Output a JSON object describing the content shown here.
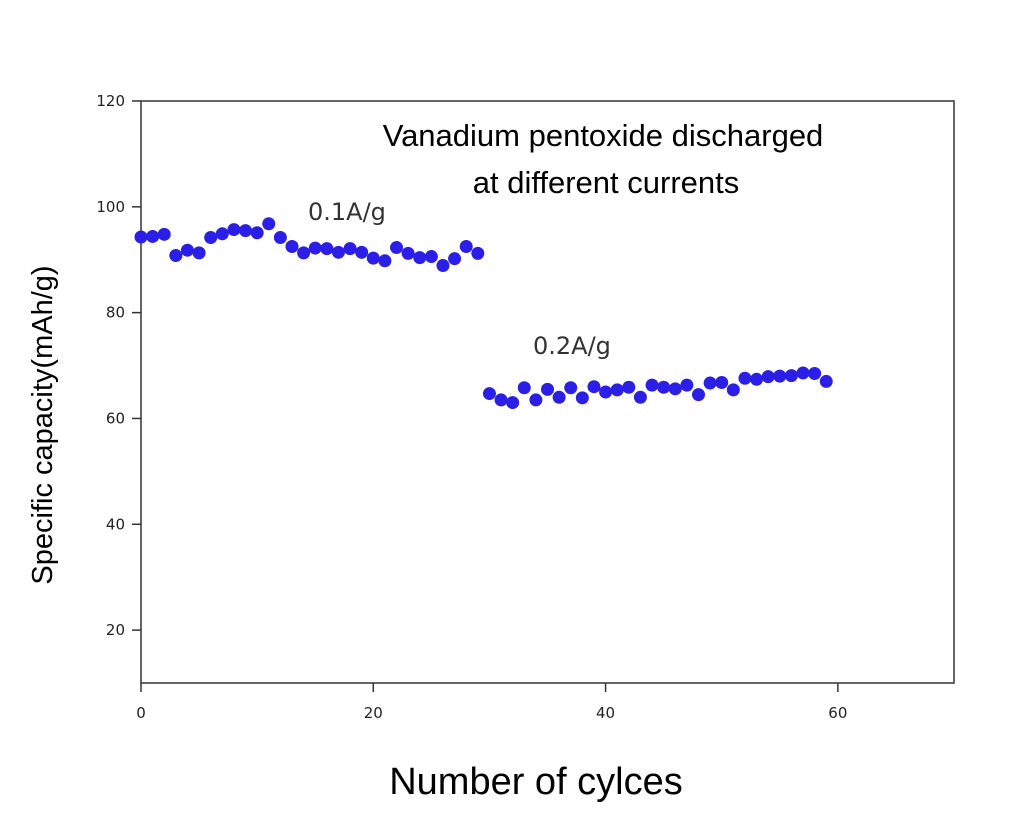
{
  "chart_data": {
    "type": "scatter",
    "title_lines": [
      "Vanadium pentoxide discharged",
      "at different currents"
    ],
    "xlabel": "Number of cylces",
    "ylabel": "Specific capacity(mAh/g)",
    "xlim": [
      0,
      70
    ],
    "ylim": [
      10,
      120
    ],
    "xticks": [
      0,
      20,
      40,
      60
    ],
    "yticks": [
      20,
      40,
      60,
      80,
      100,
      120
    ],
    "grid": false,
    "marker_color": "#2b1ee6",
    "series": [
      {
        "name": "0.1A/g",
        "x": [
          0,
          1,
          2,
          3,
          4,
          5,
          6,
          7,
          8,
          9,
          10,
          11,
          12,
          13,
          14,
          15,
          16,
          17,
          18,
          19,
          20,
          21,
          22,
          23,
          24,
          25,
          26,
          27,
          28,
          29
        ],
        "y": [
          94.3,
          94.4,
          94.8,
          90.8,
          91.8,
          91.3,
          94.2,
          94.9,
          95.7,
          95.5,
          95.1,
          96.8,
          94.2,
          92.5,
          91.3,
          92.2,
          92.1,
          91.4,
          92.1,
          91.4,
          90.3,
          89.8,
          92.3,
          91.2,
          90.4,
          90.6,
          88.9,
          90.2,
          92.5,
          91.2
        ]
      },
      {
        "name": "0.2A/g",
        "x": [
          30,
          31,
          32,
          33,
          34,
          35,
          36,
          37,
          38,
          39,
          40,
          41,
          42,
          43,
          44,
          45,
          46,
          47,
          48,
          49,
          50,
          51,
          52,
          53,
          54,
          55,
          56,
          57,
          58,
          59
        ],
        "y": [
          64.7,
          63.5,
          63.0,
          65.8,
          63.5,
          65.5,
          64.0,
          65.8,
          63.9,
          66.0,
          65.0,
          65.4,
          65.9,
          64.0,
          66.3,
          65.9,
          65.6,
          66.3,
          64.5,
          66.7,
          66.8,
          65.4,
          67.6,
          67.4,
          67.9,
          68.0,
          68.1,
          68.6,
          68.5,
          67.0
        ]
      }
    ]
  }
}
